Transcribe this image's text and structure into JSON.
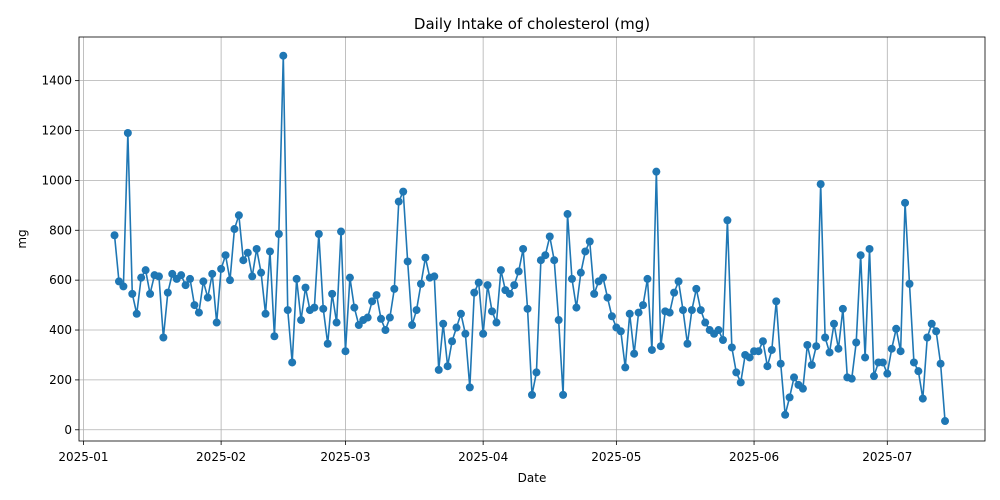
{
  "chart_data": {
    "type": "line",
    "title": "Daily Intake of cholesterol (mg)",
    "xlabel": "Date",
    "ylabel": "mg",
    "grid": true,
    "color": "#1f77b4",
    "x_start": "2025-01-08",
    "x_end": "2025-07-14",
    "xlim": [
      "2024-12-31",
      "2025-07-23"
    ],
    "ylim": [
      -45,
      1575
    ],
    "x_ticks": [
      "2025-01",
      "2025-02",
      "2025-03",
      "2025-04",
      "2025-05",
      "2025-06",
      "2025-07"
    ],
    "y_ticks": [
      0,
      200,
      400,
      600,
      800,
      1000,
      1200,
      1400
    ],
    "values": [
      780,
      595,
      575,
      1190,
      545,
      465,
      610,
      640,
      545,
      620,
      615,
      370,
      550,
      625,
      605,
      620,
      580,
      605,
      500,
      470,
      595,
      530,
      625,
      430,
      645,
      700,
      600,
      805,
      860,
      680,
      710,
      615,
      725,
      630,
      465,
      715,
      375,
      785,
      1500,
      480,
      270,
      605,
      440,
      570,
      480,
      490,
      785,
      485,
      345,
      545,
      430,
      795,
      315,
      610,
      490,
      420,
      440,
      450,
      515,
      540,
      445,
      400,
      450,
      565,
      915,
      955,
      675,
      420,
      480,
      585,
      690,
      610,
      615,
      240,
      425,
      255,
      355,
      410,
      465,
      385,
      170,
      550,
      590,
      385,
      580,
      475,
      430,
      640,
      560,
      545,
      580,
      635,
      725,
      485,
      140,
      230,
      680,
      700,
      775,
      680,
      440,
      140,
      865,
      605,
      490,
      630,
      715,
      755,
      545,
      595,
      610,
      530,
      455,
      410,
      395,
      250,
      465,
      305,
      470,
      500,
      605,
      320,
      1035,
      335,
      475,
      470,
      550,
      595,
      480,
      345,
      480,
      565,
      480,
      430,
      400,
      385,
      400,
      360,
      840,
      330,
      230,
      190,
      300,
      290,
      315,
      315,
      355,
      255,
      320,
      515,
      265,
      60,
      130,
      210,
      180,
      165,
      340,
      260,
      335,
      985,
      370,
      310,
      425,
      325,
      485,
      210,
      205,
      350,
      700,
      290,
      725,
      215,
      270,
      270,
      225,
      325,
      405,
      315,
      910,
      585,
      270,
      235,
      125,
      370,
      425,
      395,
      265,
      35
    ]
  }
}
